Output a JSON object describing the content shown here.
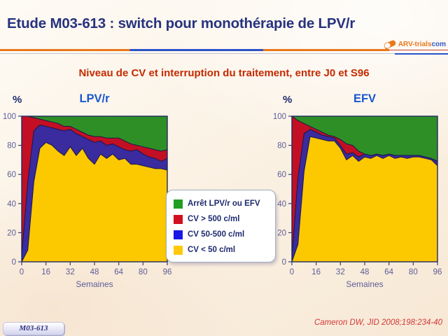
{
  "header": {
    "title": "Etude M03-613 : switch pour monothérapie de LPV/r",
    "subtitle": "Niveau de CV et interruption du traitement, entre J0 et S96",
    "logo": {
      "name": "ARV-trials.com",
      "text_primary": "ARV-trials",
      "text_secondary": "com",
      "primary_color": "#e8791d",
      "secondary_color": "#2d59c8"
    }
  },
  "legend": {
    "items": [
      {
        "label": "Arrêt LPV/r ou EFV",
        "color": "#219e21"
      },
      {
        "label": "CV > 500 c/ml",
        "color": "#d01020"
      },
      {
        "label": "CV 50-500 c/ml",
        "color": "#1717e6"
      },
      {
        "label": "CV < 50 c/ml",
        "color": "#ffc90a"
      }
    ]
  },
  "chart_data": [
    {
      "type": "area",
      "stacked": true,
      "title": "LPV/r",
      "ylabel": "%",
      "xlabel": "Semaines",
      "ylim": [
        0,
        100
      ],
      "grid": false,
      "x_ticks": [
        0,
        16,
        32,
        48,
        64,
        80,
        96
      ],
      "y_ticks": [
        0,
        20,
        40,
        60,
        80,
        100
      ],
      "x": [
        0,
        4,
        8,
        12,
        16,
        20,
        24,
        28,
        32,
        36,
        40,
        44,
        48,
        52,
        56,
        60,
        64,
        68,
        72,
        76,
        80,
        84,
        88,
        92,
        96
      ],
      "series": [
        {
          "name": "CV < 50 c/ml",
          "color": "#fcc800",
          "cumulative_top": [
            0,
            8,
            55,
            78,
            82,
            80,
            76,
            73,
            79,
            73,
            78,
            71,
            67,
            74,
            71,
            74,
            70,
            71,
            67,
            67,
            66,
            65,
            64,
            64,
            63
          ]
        },
        {
          "name": "CV 50-500 c/ml",
          "color": "#3a2b9e",
          "cumulative_top": [
            4,
            55,
            90,
            94,
            93,
            92,
            91,
            90,
            91,
            88,
            86,
            84,
            82,
            83,
            80,
            81,
            79,
            77,
            76,
            77,
            74,
            72,
            71,
            69,
            71
          ]
        },
        {
          "name": "CV > 500 c/ml",
          "color": "#c30f24",
          "cumulative_top": [
            100,
            100,
            99,
            98,
            97,
            96,
            95,
            93,
            93,
            91,
            89,
            87,
            86,
            86,
            85,
            85,
            85,
            83,
            81,
            80,
            79,
            78,
            77,
            76,
            77
          ]
        },
        {
          "name": "Arrêt LPV/r ou EFV",
          "color": "#2e8f26",
          "cumulative_top": 100
        }
      ]
    },
    {
      "type": "area",
      "stacked": true,
      "title": "EFV",
      "ylabel": "%",
      "xlabel": "Semaines",
      "ylim": [
        0,
        100
      ],
      "grid": false,
      "x_ticks": [
        0,
        16,
        32,
        48,
        64,
        80,
        96
      ],
      "y_ticks": [
        0,
        20,
        40,
        60,
        80,
        100
      ],
      "x": [
        0,
        4,
        8,
        12,
        16,
        20,
        24,
        28,
        32,
        36,
        40,
        44,
        48,
        52,
        56,
        60,
        64,
        68,
        72,
        76,
        80,
        84,
        88,
        92,
        96
      ],
      "series": [
        {
          "name": "CV < 50 c/ml",
          "color": "#fcc800",
          "cumulative_top": [
            0,
            12,
            62,
            86,
            85,
            84,
            83,
            83,
            78,
            70,
            73,
            69,
            72,
            71,
            73,
            71,
            73,
            71,
            72,
            71,
            72,
            72,
            71,
            70,
            66
          ]
        },
        {
          "name": "CV 50-500 c/ml",
          "color": "#3a2b9e",
          "cumulative_top": [
            3,
            58,
            88,
            91,
            89,
            87,
            86,
            85,
            80,
            74,
            75,
            72,
            74,
            73,
            74,
            73,
            74,
            73,
            73,
            73,
            73,
            73,
            72,
            71,
            69
          ]
        },
        {
          "name": "CV > 500 c/ml",
          "color": "#c30f24",
          "cumulative_top": [
            100,
            97,
            95,
            93,
            91,
            89,
            87,
            86,
            84,
            81,
            80,
            76,
            74,
            73,
            74,
            73,
            74,
            73,
            73,
            73,
            73,
            73,
            72,
            71,
            69
          ]
        },
        {
          "name": "Arrêt LPV/r ou EFV",
          "color": "#2e8f26",
          "cumulative_top": 100
        }
      ]
    }
  ],
  "footer": {
    "badge": "M03-613",
    "reference": "Cameron DW, JID 2008;198:234-40"
  }
}
